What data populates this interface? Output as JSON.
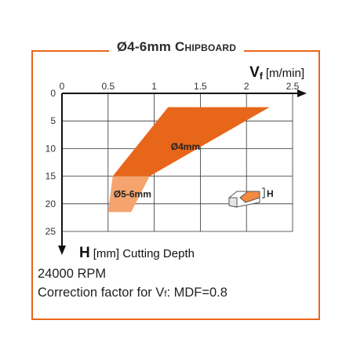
{
  "header": {
    "title_main": "Ø4-6mm",
    "title_sub": "Chipboard"
  },
  "chart_data": {
    "type": "area",
    "x_axis": {
      "label_symbol": "V",
      "label_subscript": "f",
      "label_unit": "[m/min]",
      "range": [
        0,
        2.5
      ],
      "ticks": [
        0,
        0.5,
        1,
        1.5,
        2,
        2.5
      ],
      "position": "top"
    },
    "y_axis": {
      "label_symbol": "H",
      "label_unit": "[mm] Cutting Depth",
      "range": [
        0,
        25
      ],
      "ticks": [
        0,
        5,
        10,
        15,
        20,
        25
      ],
      "inverted": true
    },
    "grid": true,
    "series": [
      {
        "name": "Ø4mm",
        "color": "#e8661a",
        "polygon": [
          [
            1.15,
            2.5
          ],
          [
            2.25,
            2.5
          ],
          [
            0.95,
            15
          ],
          [
            0.55,
            15
          ]
        ]
      },
      {
        "name": "Ø5-6mm",
        "color": "#f5a46e",
        "polygon": [
          [
            0.55,
            15
          ],
          [
            0.95,
            15
          ],
          [
            0.75,
            21.5
          ],
          [
            0.5,
            21.5
          ]
        ]
      }
    ],
    "inset_icon": {
      "label": "H"
    }
  },
  "footer": {
    "rpm": "24000 RPM",
    "correction_prefix": "Correction factor for V",
    "correction_subscript": "f",
    "correction_suffix": ": MDF=0.8"
  }
}
